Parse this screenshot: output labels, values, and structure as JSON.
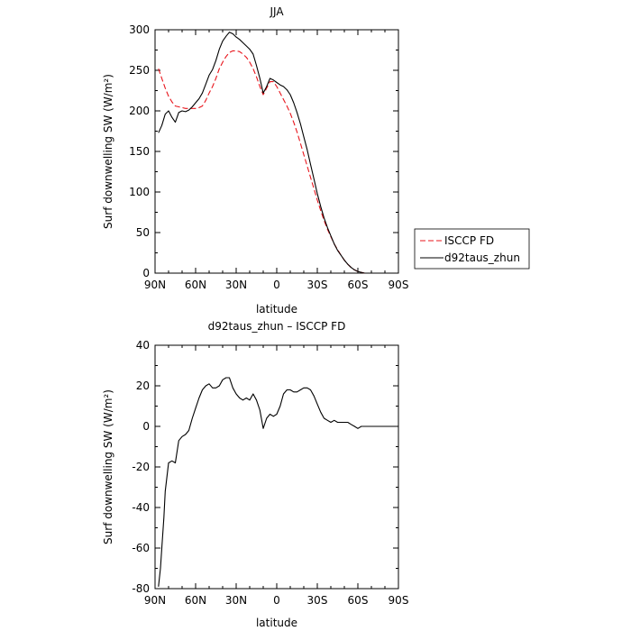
{
  "chart_data": [
    {
      "type": "line",
      "title": "JJA",
      "xlabel": "latitude",
      "ylabel": "Surf downwelling SW (W/m²)",
      "xlim": [
        90,
        -90
      ],
      "ylim": [
        0,
        300
      ],
      "xticks": [
        {
          "value": 90,
          "label": "90N"
        },
        {
          "value": 60,
          "label": "60N"
        },
        {
          "value": 30,
          "label": "30N"
        },
        {
          "value": 0,
          "label": "0"
        },
        {
          "value": -30,
          "label": "30S"
        },
        {
          "value": -60,
          "label": "60S"
        },
        {
          "value": -90,
          "label": "90S"
        }
      ],
      "yticks": [
        0,
        50,
        100,
        150,
        200,
        250,
        300
      ],
      "grid": false,
      "legend": "right",
      "series": [
        {
          "name": "ISCCP FD",
          "color": "#e8141b",
          "dash": "dashed",
          "x": [
            87.5,
            85,
            82.5,
            80,
            77.5,
            75,
            72.5,
            70,
            67.5,
            65,
            62.5,
            60,
            57.5,
            55,
            52.5,
            50,
            47.5,
            45,
            42.5,
            40,
            37.5,
            35,
            32.5,
            30,
            27.5,
            25,
            22.5,
            20,
            17.5,
            15,
            12.5,
            10,
            7.5,
            5,
            2.5,
            0,
            -2.5,
            -5,
            -7.5,
            -10,
            -12.5,
            -15,
            -17.5,
            -20,
            -22.5,
            -25,
            -27.5,
            -30,
            -32.5,
            -35,
            -37.5,
            -40,
            -42.5,
            -45,
            -47.5,
            -50,
            -52.5,
            -55,
            -57.5,
            -60,
            -62.5,
            -65,
            -67.5,
            -70,
            -72.5,
            -75,
            -77.5,
            -80,
            -82.5,
            -85
          ],
          "values": [
            252,
            240,
            228,
            218,
            211,
            206,
            205,
            204,
            203,
            203,
            203,
            203,
            204,
            206,
            213,
            222,
            230,
            240,
            252,
            260,
            267,
            272,
            274,
            274,
            273,
            270,
            266,
            260,
            252,
            242,
            230,
            220,
            228,
            236,
            236,
            230,
            222,
            214,
            206,
            197,
            186,
            174,
            160,
            146,
            132,
            118,
            104,
            90,
            77,
            65,
            54,
            45,
            36,
            29,
            22,
            16,
            11,
            7,
            4,
            2,
            1,
            0,
            0,
            0,
            0,
            0,
            0,
            0,
            0,
            0
          ]
        },
        {
          "name": "d92taus_zhun",
          "color": "#000000",
          "dash": "solid",
          "x": [
            87.5,
            85,
            82.5,
            80,
            77.5,
            75,
            72.5,
            70,
            67.5,
            65,
            62.5,
            60,
            57.5,
            55,
            52.5,
            50,
            47.5,
            45,
            42.5,
            40,
            37.5,
            35,
            32.5,
            30,
            27.5,
            25,
            22.5,
            20,
            17.5,
            15,
            12.5,
            10,
            7.5,
            5,
            2.5,
            0,
            -2.5,
            -5,
            -7.5,
            -10,
            -12.5,
            -15,
            -17.5,
            -20,
            -22.5,
            -25,
            -27.5,
            -30,
            -32.5,
            -35,
            -37.5,
            -40,
            -42.5,
            -45,
            -47.5,
            -50,
            -52.5,
            -55,
            -57.5,
            -60,
            -62.5,
            -65,
            -67.5,
            -70,
            -72.5,
            -75,
            -77.5,
            -80,
            -82.5,
            -85
          ],
          "values": [
            173,
            182,
            196,
            200,
            192,
            186,
            198,
            200,
            199,
            201,
            205,
            210,
            215,
            222,
            233,
            244,
            251,
            262,
            276,
            286,
            292,
            297,
            295,
            291,
            288,
            284,
            280,
            276,
            270,
            256,
            240,
            222,
            230,
            240,
            238,
            235,
            232,
            230,
            226,
            220,
            210,
            198,
            184,
            168,
            152,
            134,
            116,
            98,
            82,
            68,
            56,
            46,
            36,
            28,
            22,
            16,
            11,
            7,
            4,
            2,
            1,
            0,
            0,
            0,
            0,
            0,
            0,
            0,
            0,
            0
          ]
        }
      ]
    },
    {
      "type": "line",
      "title": "d92taus_zhun – ISCCP FD",
      "xlabel": "latitude",
      "ylabel": "Surf downwelling SW (W/m²)",
      "xlim": [
        90,
        -90
      ],
      "ylim": [
        -80,
        40
      ],
      "xticks": [
        {
          "value": 90,
          "label": "90N"
        },
        {
          "value": 60,
          "label": "60N"
        },
        {
          "value": 30,
          "label": "30N"
        },
        {
          "value": 0,
          "label": "0"
        },
        {
          "value": -30,
          "label": "30S"
        },
        {
          "value": -60,
          "label": "60S"
        },
        {
          "value": -90,
          "label": "90S"
        }
      ],
      "yticks": [
        -80,
        -60,
        -40,
        -20,
        0,
        20,
        40
      ],
      "grid": false,
      "series": [
        {
          "color": "#000000",
          "dash": "solid",
          "x": [
            87.5,
            86,
            85,
            83.5,
            82.5,
            80,
            77.5,
            75,
            72.5,
            70,
            67.5,
            65,
            62.5,
            60,
            57.5,
            55,
            52.5,
            50,
            47.5,
            45,
            42.5,
            40,
            37.5,
            35,
            32.5,
            30,
            27.5,
            25,
            22.5,
            20,
            17.5,
            15,
            12.5,
            10,
            7.5,
            5,
            2.5,
            0,
            -2.5,
            -5,
            -7.5,
            -10,
            -12.5,
            -15,
            -17.5,
            -20,
            -22.5,
            -25,
            -27.5,
            -30,
            -32.5,
            -35,
            -37.5,
            -40,
            -42.5,
            -45,
            -47.5,
            -50,
            -52.5,
            -55,
            -57.5,
            -60,
            -62.5,
            -65,
            -67.5,
            -70,
            -72.5,
            -75,
            -77.5,
            -80,
            -82.5,
            -85,
            -87.5
          ],
          "values": [
            -79,
            -70,
            -60,
            -45,
            -32,
            -18,
            -17,
            -18,
            -7,
            -5,
            -4,
            -2,
            4,
            9,
            14,
            18,
            20,
            21,
            19,
            19,
            20,
            23,
            24,
            24,
            19,
            16,
            14,
            13,
            14,
            13,
            16,
            13,
            8,
            -1,
            4,
            6,
            5,
            6,
            10,
            16,
            18,
            18,
            17,
            17,
            18,
            19,
            19,
            18,
            15,
            11,
            7,
            4,
            3,
            2,
            3,
            2,
            2,
            2,
            2,
            1,
            0,
            -1,
            0,
            0,
            0,
            0,
            0,
            0,
            0,
            0,
            0,
            0,
            0
          ]
        }
      ]
    }
  ]
}
